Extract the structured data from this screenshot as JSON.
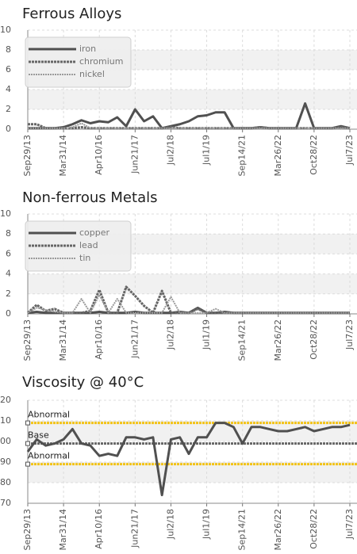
{
  "chart_data": [
    {
      "type": "line",
      "title": "Ferrous Alloys",
      "categories": [
        "Sep29/13",
        null,
        null,
        null,
        "Mar31/14",
        null,
        null,
        null,
        "Apr10/16",
        null,
        null,
        null,
        "Jun21/17",
        null,
        null,
        null,
        "Jul2/18",
        null,
        null,
        null,
        "Jul1/19",
        null,
        null,
        null,
        "Sep14/21",
        null,
        null,
        null,
        "Mar26/22",
        null,
        null,
        null,
        "Oct28/22",
        null,
        null,
        null,
        "Jul7/23"
      ],
      "series": [
        {
          "name": "iron",
          "color": "#505050",
          "style": "solid",
          "values": [
            0.1,
            0.1,
            0.1,
            0.1,
            0.2,
            0.5,
            0.9,
            0.6,
            0.8,
            0.7,
            1.2,
            0.3,
            2.0,
            0.8,
            1.3,
            0.1,
            0.3,
            0.5,
            0.8,
            1.3,
            1.4,
            1.7,
            1.7,
            0.1,
            0.1,
            0.1,
            0.2,
            0.1,
            0.1,
            0.1,
            0.1,
            2.6,
            0.1,
            0.1,
            0.1,
            0.3,
            0.1
          ]
        },
        {
          "name": "chromium",
          "color": "#666666",
          "style": "dashed",
          "values": [
            0.5,
            0.5,
            0.1,
            0.1,
            0.1,
            0.1,
            0.2,
            0.1,
            0.1,
            0.1,
            0.1,
            0.1,
            0.1,
            0.1,
            0.1,
            0.1,
            0.2,
            0.1,
            0.1,
            0.1,
            0.1,
            0.1,
            0.1,
            0.1,
            0.1,
            0.1,
            0.2,
            0.1,
            0.1,
            0.1,
            0.1,
            0.1,
            0.1,
            0.1,
            0.1,
            0.2,
            0.1
          ]
        },
        {
          "name": "nickel",
          "color": "#9a9a9a",
          "style": "dotted",
          "values": [
            0.1,
            0.1,
            0.1,
            0.1,
            0.1,
            0.2,
            0.6,
            0.1,
            0.1,
            0.1,
            0.1,
            0.1,
            0.1,
            0.1,
            0.1,
            0.1,
            0.1,
            0.1,
            0.1,
            0.1,
            0.1,
            0.1,
            0.1,
            0.1,
            0.1,
            0.1,
            0.1,
            0.1,
            0.1,
            0.1,
            0.1,
            0.1,
            0.1,
            0.1,
            0.1,
            0.1,
            0.1
          ]
        }
      ],
      "ylim": [
        0,
        10
      ],
      "yticks": [
        0,
        2,
        4,
        6,
        8,
        10
      ],
      "grid": true,
      "legend": "upper left"
    },
    {
      "type": "line",
      "title": "Non-ferrous Metals",
      "categories": [
        "Sep29/13",
        null,
        null,
        null,
        "Mar31/14",
        null,
        null,
        null,
        "Apr10/16",
        null,
        null,
        null,
        "Jun21/17",
        null,
        null,
        null,
        "Jul2/18",
        null,
        null,
        null,
        "Jul1/19",
        null,
        null,
        null,
        "Sep14/21",
        null,
        null,
        null,
        "Mar26/22",
        null,
        null,
        null,
        "Oct28/22",
        null,
        null,
        null,
        "Jul7/23"
      ],
      "series": [
        {
          "name": "copper",
          "color": "#505050",
          "style": "solid",
          "values": [
            0.1,
            0.2,
            0.1,
            0.1,
            0.1,
            0.1,
            0.1,
            0.1,
            0.2,
            0.1,
            0.1,
            0.1,
            0.2,
            0.1,
            0.1,
            0.1,
            0.1,
            0.2,
            0.1,
            0.6,
            0.1,
            0.1,
            0.2,
            0.1,
            0.1,
            0.1,
            0.1,
            0.1,
            0.1,
            0.1,
            0.1,
            0.1,
            0.1,
            0.1,
            0.1,
            0.1,
            0.1
          ]
        },
        {
          "name": "lead",
          "color": "#666666",
          "style": "dashed",
          "values": [
            0.1,
            0.9,
            0.3,
            0.5,
            0.1,
            0.1,
            0.1,
            0.3,
            2.4,
            0.1,
            0.1,
            2.7,
            1.8,
            0.8,
            0.1,
            2.3,
            0.1,
            0.1,
            0.1,
            0.5,
            0.1,
            0.1,
            0.1,
            0.1,
            0.1,
            0.1,
            0.1,
            0.1,
            0.1,
            0.1,
            0.1,
            0.1,
            0.1,
            0.1,
            0.1,
            0.1,
            0.1
          ]
        },
        {
          "name": "tin",
          "color": "#9a9a9a",
          "style": "dotted",
          "values": [
            0.1,
            0.6,
            0.4,
            0.2,
            0.1,
            0.1,
            1.5,
            0.1,
            1.9,
            0.1,
            1.5,
            0.1,
            0.1,
            0.1,
            0.1,
            0.1,
            1.7,
            0.1,
            0.1,
            0.1,
            0.1,
            0.5,
            0.1,
            0.1,
            0.1,
            0.1,
            0.1,
            0.1,
            0.1,
            0.1,
            0.1,
            0.1,
            0.1,
            0.1,
            0.1,
            0.1,
            0.1
          ]
        }
      ],
      "ylim": [
        0,
        10
      ],
      "yticks": [
        0,
        2,
        4,
        6,
        8,
        10
      ],
      "grid": true,
      "legend": "upper left"
    },
    {
      "type": "line",
      "title": "Viscosity @ 40°C",
      "categories": [
        "Sep29/13",
        null,
        null,
        null,
        "Mar31/14",
        null,
        null,
        null,
        "Apr10/16",
        null,
        null,
        null,
        "Jun21/17",
        null,
        null,
        null,
        "Jul2/18",
        null,
        null,
        null,
        "Jul1/19",
        null,
        null,
        null,
        "Sep14/21",
        null,
        null,
        null,
        "Mar26/22",
        null,
        null,
        null,
        "Oct28/22",
        null,
        null,
        null,
        "Jul7/23"
      ],
      "values": [
        95,
        101,
        98,
        99,
        101,
        106,
        99,
        98,
        93,
        94,
        93,
        102,
        102,
        101,
        102,
        74,
        101,
        102,
        94,
        102,
        102,
        109,
        109,
        107,
        99,
        107,
        107,
        106,
        105,
        105,
        106,
        107,
        105,
        106,
        107,
        107,
        108
      ],
      "color": "#505050",
      "reference_lines": [
        {
          "label": "Abnormal",
          "value": 109,
          "color": "#f2c318"
        },
        {
          "label": "Base",
          "value": 99,
          "color": "#666666"
        },
        {
          "label": "Abnormal",
          "value": 89,
          "color": "#f2c318"
        }
      ],
      "ylim": [
        70,
        120
      ],
      "yticks": [
        70,
        80,
        90,
        100,
        110,
        120
      ],
      "grid": true
    }
  ]
}
